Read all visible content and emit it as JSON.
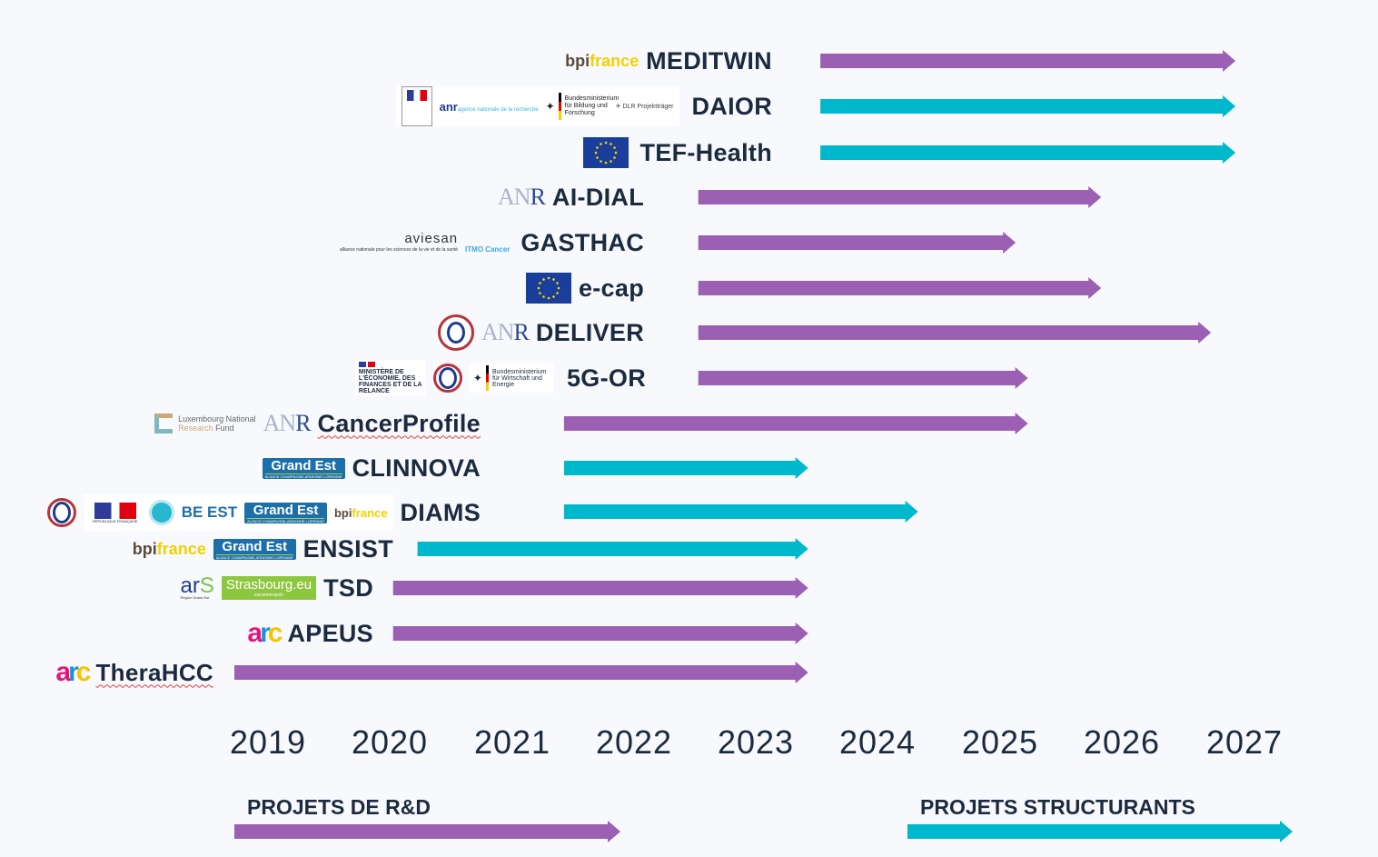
{
  "chart_data": {
    "type": "timeline",
    "title": "",
    "x_ticks": [
      "2019",
      "2020",
      "2021",
      "2022",
      "2023",
      "2024",
      "2025",
      "2026",
      "2027"
    ],
    "x_range": [
      2019,
      2027.5
    ],
    "colors": {
      "rd": "#9b5fb3",
      "structurant": "#00b8cc",
      "text": "#1c2a3f"
    },
    "projects": [
      {
        "name": "MEDITWIN",
        "type": "rd",
        "start": 2023.8,
        "end": 2027.2,
        "logos": [
          "bpifrance"
        ]
      },
      {
        "name": "DAIOR",
        "type": "structurant",
        "start": 2023.8,
        "end": 2027.2,
        "logos": [
          "ministere-enseignement-superieur",
          "anr",
          "bmbf",
          "dlr-projekttraeger"
        ]
      },
      {
        "name": "TEF-Health",
        "type": "structurant",
        "start": 2023.8,
        "end": 2027.2,
        "logos": [
          "eu-flag"
        ]
      },
      {
        "name": "AI-DIAL",
        "type": "rd",
        "start": 2022.8,
        "end": 2026.1,
        "logos": [
          "anr"
        ]
      },
      {
        "name": "GASTHAC",
        "type": "rd",
        "start": 2022.8,
        "end": 2025.4,
        "logos": [
          "aviesan",
          "itmo-cancer"
        ]
      },
      {
        "name": "e-cap",
        "type": "rd",
        "start": 2022.8,
        "end": 2026.1,
        "logos": [
          "eu-flag"
        ]
      },
      {
        "name": "DELIVER",
        "type": "rd",
        "start": 2022.8,
        "end": 2027.0,
        "logos": [
          "investir-avenir",
          "anr"
        ]
      },
      {
        "name": "5G-OR",
        "type": "rd",
        "start": 2022.8,
        "end": 2025.5,
        "logos": [
          "ministere-economie",
          "investir-avenir",
          "bmwi"
        ]
      },
      {
        "name": "CancerProfile",
        "type": "rd",
        "start": 2021.7,
        "end": 2025.5,
        "logos": [
          "luxembourg-national-research-fund",
          "anr"
        ]
      },
      {
        "name": "CLINNOVA",
        "type": "structurant",
        "start": 2021.7,
        "end": 2023.7,
        "logos": [
          "grand-est"
        ]
      },
      {
        "name": "DIAMS",
        "type": "structurant",
        "start": 2021.7,
        "end": 2024.6,
        "logos": [
          "investir-avenir",
          "republique-francaise",
          "cancer-seal",
          "be-est",
          "grand-est",
          "bpifrance"
        ]
      },
      {
        "name": "ENSIST",
        "type": "structurant",
        "start": 2020.5,
        "end": 2023.7,
        "logos": [
          "bpifrance",
          "grand-est"
        ]
      },
      {
        "name": "TSD",
        "type": "rd",
        "start": 2020.3,
        "end": 2023.7,
        "logos": [
          "ars",
          "strasbourg-eu"
        ]
      },
      {
        "name": "APEUS",
        "type": "rd",
        "start": 2020.3,
        "end": 2023.7,
        "logos": [
          "arc"
        ]
      },
      {
        "name": "TheraHCC",
        "type": "rd",
        "start": 2019.0,
        "end": 2023.7,
        "logos": [
          "arc"
        ]
      }
    ],
    "legend": [
      {
        "label": "PROJETS DE R&D",
        "type": "rd"
      },
      {
        "label": "PROJETS STRUCTURANTS",
        "type": "structurant"
      }
    ]
  },
  "logo_text": {
    "bpi_b": "bpi",
    "bpi_f": "france",
    "anr_a": "AN",
    "anr_r": "R",
    "anr_small": "anr",
    "anr_small_sub": "agence nationale de la recherche",
    "bmbf": "Bundesministerium für Bildung und Forschung",
    "dlr": "DLR Projektträger",
    "aviesan": "aviesan",
    "aviesan_sub": "alliance nationale pour les sciences de la vie et de la santé",
    "itmo": "ITMO Cancer",
    "ministere_eco": "MINISTÈRE DE L'ÉCONOMIE, DES FINANCES ET DE LA RELANCE",
    "bmwi": "Bundesministerium für Wirtschaft und Energie",
    "lnr_1": "Luxembourg National",
    "lnr_2a": "Research",
    "lnr_2b": "Fund",
    "grandest": "Grand Est",
    "grandest_sub": "ALSACE CHAMPAGNE-ARDENNE LORRAINE",
    "rf": "RÉPUBLIQUE FRANÇAISE",
    "beest_be": "BE",
    "beest_est": " EST",
    "ars_ar": "ar",
    "ars_s": "S",
    "ars_sub": "Région Grand Est",
    "strasbourg": "Strasbourg.eu",
    "strasbourg_sub": "eurometropole",
    "arc_a": "a",
    "arc_r": "r",
    "arc_c": "c"
  }
}
